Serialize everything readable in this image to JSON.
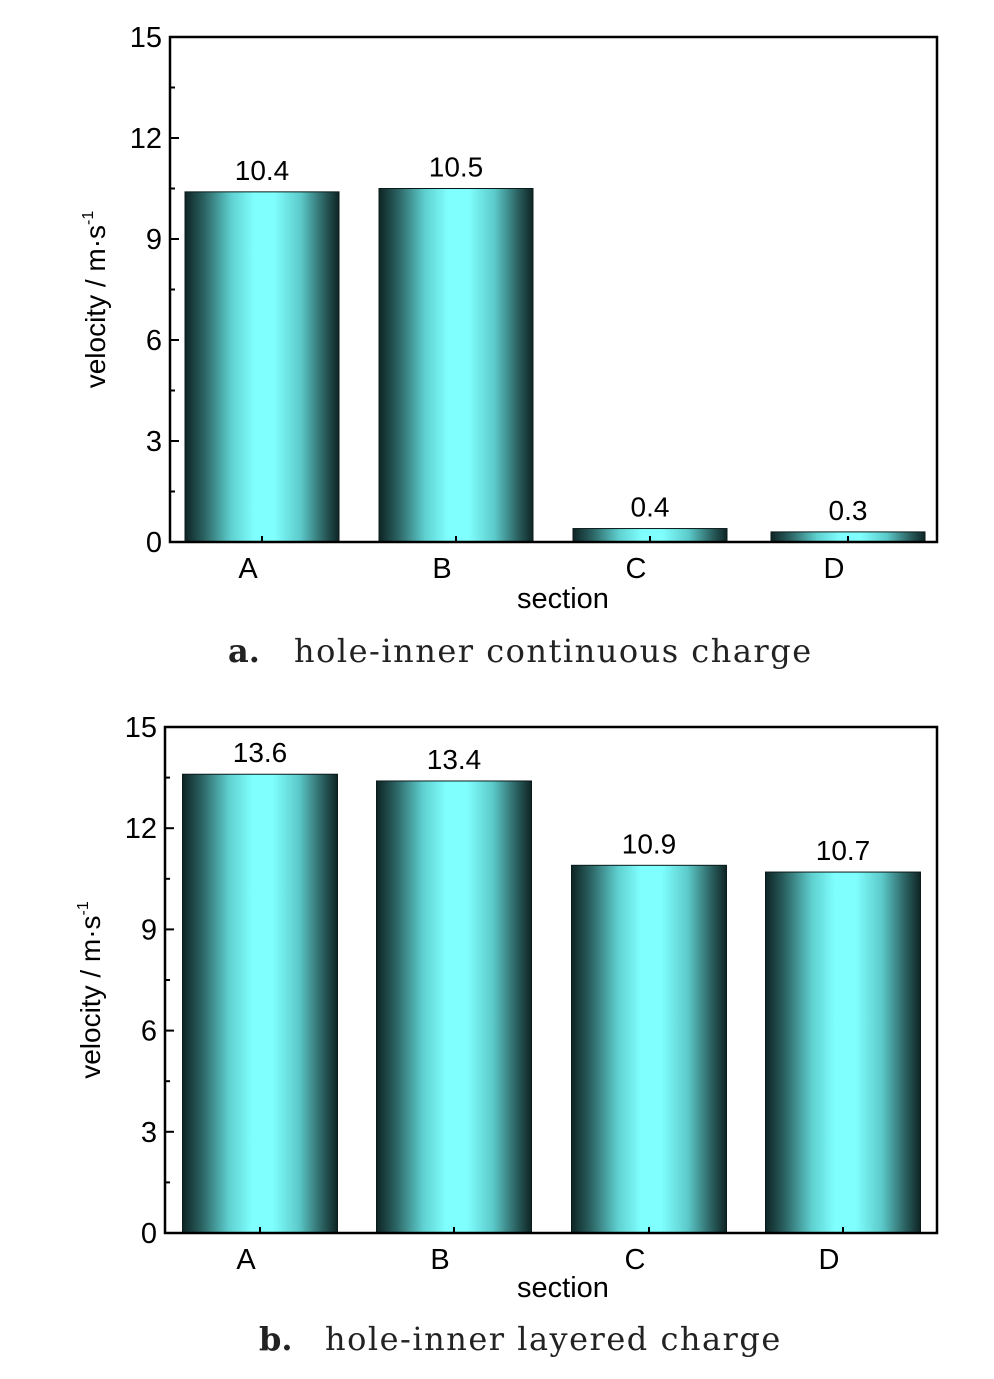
{
  "chart_data": [
    {
      "type": "bar",
      "categories": [
        "A",
        "B",
        "C",
        "D"
      ],
      "values": [
        10.4,
        10.5,
        0.4,
        0.3
      ],
      "data_labels": [
        "10.4",
        "10.5",
        "0.4",
        "0.3"
      ],
      "xlabel": "section",
      "ylabel": "velocity / m·s",
      "ylabel_sup": "-1",
      "ylim": [
        0,
        15
      ],
      "yticks": [
        0,
        3,
        6,
        9,
        12,
        15
      ],
      "caption_letter": "a.",
      "caption_text": "hole-inner continuous charge"
    },
    {
      "type": "bar",
      "categories": [
        "A",
        "B",
        "C",
        "D"
      ],
      "values": [
        13.6,
        13.4,
        10.9,
        10.7
      ],
      "data_labels": [
        "13.6",
        "13.4",
        "10.9",
        "10.7"
      ],
      "xlabel": "section",
      "ylabel": "velocity / m·s",
      "ylabel_sup": "-1",
      "ylim": [
        0,
        15
      ],
      "yticks": [
        0,
        3,
        6,
        9,
        12,
        15
      ],
      "caption_letter": "b.",
      "caption_text": "hole-inner layered charge"
    }
  ],
  "colors": {
    "bar_center": "#80ffff",
    "bar_edge": "#0e2424"
  }
}
